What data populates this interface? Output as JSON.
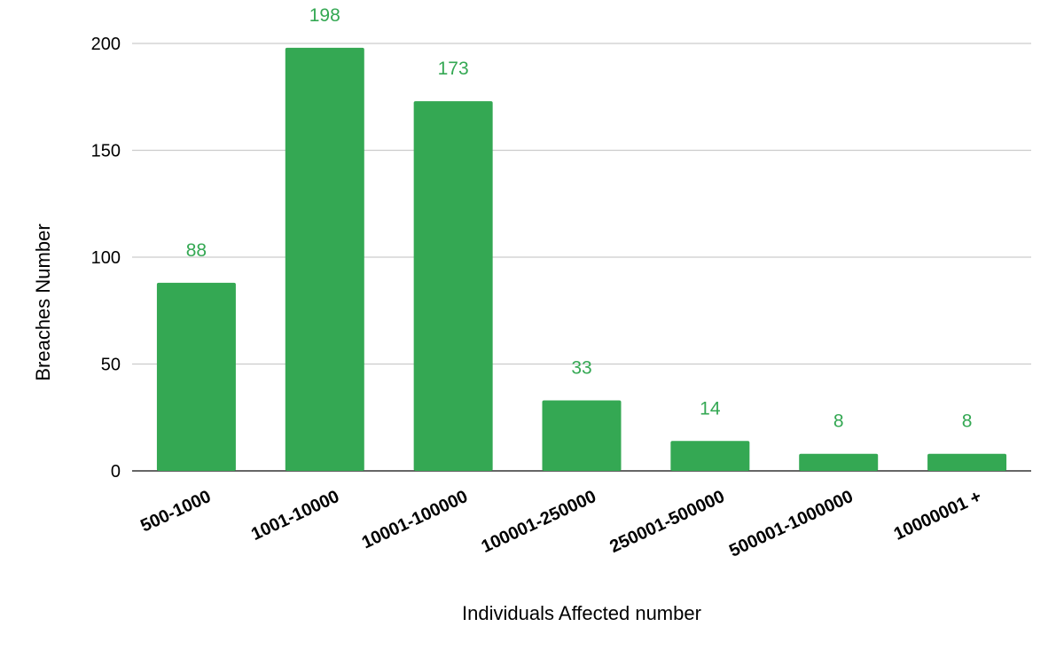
{
  "chart_data": {
    "type": "bar",
    "categories": [
      "500-1000",
      "1001-10000",
      "10001-100000",
      "100001-250000",
      "250001-500000",
      "500001-1000000",
      "10000001 +"
    ],
    "values": [
      88,
      198,
      173,
      33,
      14,
      8,
      8
    ],
    "data_labels": [
      "88",
      "198",
      "173",
      "33",
      "14",
      "8",
      "8"
    ],
    "xlabel": "Individuals Affected number",
    "ylabel": "Breaches Number",
    "ylim": [
      0,
      200
    ],
    "yticks": [
      0,
      50,
      100,
      150,
      200
    ],
    "ytick_labels": [
      "0",
      "50",
      "100",
      "150",
      "200"
    ],
    "grid": true,
    "legend": "none",
    "bar_color": "#34a853",
    "label_color": "#34a853"
  }
}
